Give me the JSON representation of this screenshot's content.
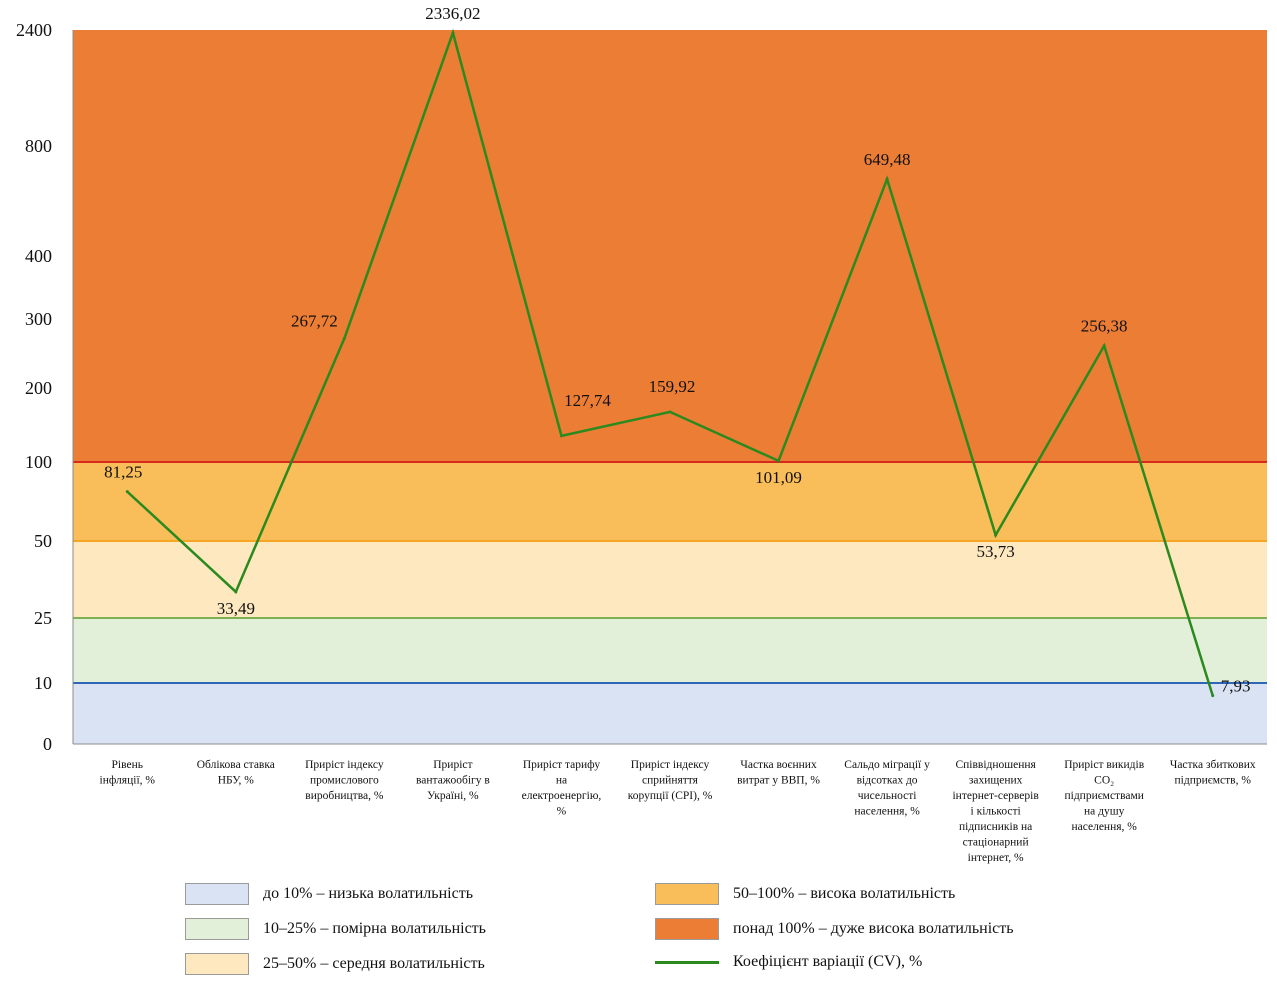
{
  "chart_data": {
    "type": "line",
    "y_ticks": [
      {
        "value": 0,
        "label": "0"
      },
      {
        "value": 10,
        "label": "10"
      },
      {
        "value": 25,
        "label": "25"
      },
      {
        "value": 50,
        "label": "50"
      },
      {
        "value": 100,
        "label": "100"
      },
      {
        "value": 200,
        "label": "200"
      },
      {
        "value": 300,
        "label": "300"
      },
      {
        "value": 400,
        "label": "400"
      },
      {
        "value": 800,
        "label": "800"
      },
      {
        "value": 2400,
        "label": "2400"
      }
    ],
    "ylim": [
      0,
      2400
    ],
    "y_scale": "nonlinear (piecewise)",
    "categories": [
      [
        "Рівень",
        "інфляції, %"
      ],
      [
        "Облікова ставка",
        "НБУ, %"
      ],
      [
        "Приріст індексу",
        "промислового",
        "виробництва, %"
      ],
      [
        "Приріст",
        "вантажообігу в",
        "Україні, %"
      ],
      [
        "Приріст тарифу",
        "на",
        "електроенергію,",
        "%"
      ],
      [
        "Приріст індексу",
        "сприйняття",
        "корупції (CPI), %"
      ],
      [
        "Частка воєнних",
        "витрат у ВВП, %"
      ],
      [
        "Сальдо міграції у",
        "відсотках до",
        "чисельності",
        "населення, %"
      ],
      [
        "Співвідношення",
        "захищених",
        "інтернет-серверів",
        "і кількості",
        "підписників на",
        "стаціонарний",
        "інтернет, %"
      ],
      [
        "Приріст викидів",
        "CO₂",
        "підприємствами",
        "на душу",
        "населення, %"
      ],
      [
        "Частка збиткових",
        "підприємств, %"
      ]
    ],
    "series": [
      {
        "name": "Коефіцієнт варіації (CV), %",
        "values": [
          81.25,
          33.49,
          267.72,
          2336.02,
          127.74,
          159.92,
          101.09,
          649.48,
          53.73,
          256.38,
          7.93
        ],
        "labels": [
          "81,25",
          "33,49",
          "267,72",
          "2336,02",
          "127,74",
          "159,92",
          "101,09",
          "649,48",
          "53,73",
          "256,38",
          "7,93"
        ],
        "color": "#2a8a1e"
      }
    ],
    "bands": [
      {
        "from": 0,
        "to": 10,
        "color": "#dae3f3",
        "line_color": "#2e66b8"
      },
      {
        "from": 10,
        "to": 25,
        "color": "#e2efd9",
        "line_color": "#7fb055"
      },
      {
        "from": 25,
        "to": 50,
        "color": "#fde8bf",
        "line_color": "#f5a623"
      },
      {
        "from": 50,
        "to": 100,
        "color": "#f9bd59",
        "line_color": "#d9281c"
      },
      {
        "from": 100,
        "to": 2400,
        "color": "#ec7d35",
        "line_color": "#ec7d35"
      }
    ],
    "legend": [
      {
        "label": "до 10% – низька волатильність",
        "kind": "box",
        "color": "#dae3f3"
      },
      {
        "label": "10–25% – помірна волатильність",
        "kind": "box",
        "color": "#e2efd9"
      },
      {
        "label": "25–50% – середня волатильність",
        "kind": "box",
        "color": "#fde8bf"
      },
      {
        "label": "50–100% – висока волатильність",
        "kind": "box",
        "color": "#f9bd59"
      },
      {
        "label": "понад 100% – дуже висока волатильність",
        "kind": "box",
        "color": "#ec7d35"
      },
      {
        "label": "Коефіцієнт варіації (CV), %",
        "kind": "line",
        "color": "#2a8a1e"
      }
    ],
    "legend_placement": "bottom"
  }
}
